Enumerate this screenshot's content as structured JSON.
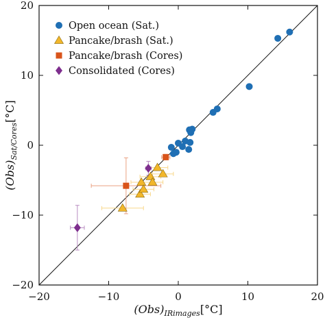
{
  "chart_data": {
    "type": "scatter",
    "title": "",
    "xlabel": "(Obs)_{IRimages}[°C]",
    "ylabel": "(Obs)_{Sat/Cores}[°C]",
    "xlabel_parts": {
      "main": "(Obs)",
      "sub": "IRimages",
      "unit": "[°C]"
    },
    "ylabel_parts": {
      "main": "(Obs)",
      "sub": "Sat/Cores",
      "unit": "[°C]"
    },
    "xlim": [
      -20,
      20
    ],
    "ylim": [
      -20,
      20
    ],
    "xticks": [
      -20,
      -10,
      0,
      10,
      20
    ],
    "yticks": [
      -20,
      -10,
      0,
      10,
      20
    ],
    "xtick_labels": [
      "−20",
      "−10",
      "0",
      "10",
      "20"
    ],
    "ytick_labels": [
      "−20",
      "−10",
      "0",
      "10",
      "20"
    ],
    "grid": false,
    "legend_position": "top-left",
    "reference_line": "1:1",
    "series": [
      {
        "name": "Open ocean (Sat.)",
        "marker": "circle",
        "color": "#1f6fb4",
        "points": [
          {
            "x": -1.0,
            "y": -0.3
          },
          {
            "x": -0.7,
            "y": -1.2
          },
          {
            "x": -0.3,
            "y": -1.0
          },
          {
            "x": 0.0,
            "y": 0.3
          },
          {
            "x": 0.6,
            "y": -0.2
          },
          {
            "x": 1.0,
            "y": 0.6
          },
          {
            "x": 1.5,
            "y": -0.6
          },
          {
            "x": 1.6,
            "y": 2.2
          },
          {
            "x": 1.8,
            "y": 1.8
          },
          {
            "x": 2.0,
            "y": 2.3
          },
          {
            "x": 1.7,
            "y": 0.4
          },
          {
            "x": 5.0,
            "y": 4.7
          },
          {
            "x": 5.6,
            "y": 5.2
          },
          {
            "x": 10.2,
            "y": 8.4
          },
          {
            "x": 14.3,
            "y": 15.3
          },
          {
            "x": 16.0,
            "y": 16.2
          }
        ]
      },
      {
        "name": "Pancake/brash (Sat.)",
        "marker": "triangle",
        "color": "#f2b72b",
        "points": [
          {
            "x": -8.0,
            "y": -9.0,
            "xerr": 3.0
          },
          {
            "x": -5.5,
            "y": -7.0,
            "xerr": 1.5
          },
          {
            "x": -5.3,
            "y": -5.3,
            "xerr": 1.5
          },
          {
            "x": -5.0,
            "y": -6.3,
            "xerr": 1.5
          },
          {
            "x": -4.0,
            "y": -4.5,
            "xerr": 1.5
          },
          {
            "x": -3.7,
            "y": -5.3,
            "xerr": 1.5
          },
          {
            "x": -3.0,
            "y": -3.2,
            "xerr": 1.5
          },
          {
            "x": -2.2,
            "y": -4.1,
            "xerr": 1.5
          }
        ]
      },
      {
        "name": "Pancake/brash (Cores)",
        "marker": "square",
        "color": "#d9541b",
        "points": [
          {
            "x": -7.5,
            "y": -5.8,
            "xerr": 5.0,
            "yerr": 4.0
          },
          {
            "x": -1.8,
            "y": -1.7,
            "xerr": 0.6,
            "yerr": 0.4
          }
        ]
      },
      {
        "name": "Consolidated (Cores)",
        "marker": "diamond",
        "color": "#7e2e8e",
        "points": [
          {
            "x": -14.5,
            "y": -11.8,
            "xerr": 1.0,
            "yerr": 3.2
          },
          {
            "x": -4.3,
            "y": -3.3,
            "xerr": 0.4,
            "yerr": 1.0
          }
        ]
      }
    ]
  }
}
